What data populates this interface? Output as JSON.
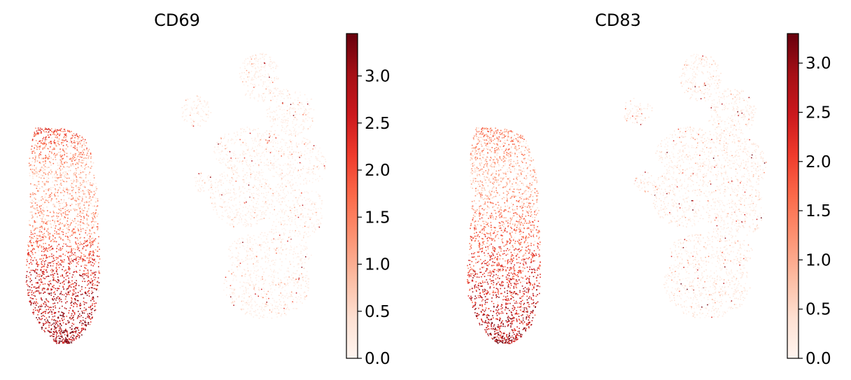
{
  "chart_data": [
    {
      "type": "scatter",
      "title": "CD69",
      "xlabel": "",
      "ylabel": "",
      "colormap": "Reds",
      "colorbar": {
        "min": 0.0,
        "max": 3.45,
        "ticks": [
          0.0,
          0.5,
          1.0,
          1.5,
          2.0,
          2.5,
          3.0
        ],
        "tick_labels": [
          "0.0",
          "0.5",
          "1.0",
          "1.5",
          "2.0",
          "2.5",
          "3.0"
        ]
      },
      "axes_visible": false,
      "clusters": [
        {
          "group": "left-elongated",
          "expression_by_height": [
            {
              "level": "top-lobe",
              "mean": 2.0
            },
            {
              "level": "upper-middle",
              "mean": 0.7
            },
            {
              "level": "middle",
              "mean": 1.3
            },
            {
              "level": "lower",
              "mean": 2.5
            },
            {
              "level": "bottom",
              "mean": 3.0
            }
          ]
        },
        {
          "group": "right-large",
          "mean": 0.2,
          "sparse_high_points": true
        }
      ]
    },
    {
      "type": "scatter",
      "title": "CD83",
      "xlabel": "",
      "ylabel": "",
      "colormap": "Reds",
      "colorbar": {
        "min": 0.0,
        "max": 3.3,
        "ticks": [
          0.0,
          0.5,
          1.0,
          1.5,
          2.0,
          2.5,
          3.0
        ],
        "tick_labels": [
          "0.0",
          "0.5",
          "1.0",
          "1.5",
          "2.0",
          "2.5",
          "3.0"
        ]
      },
      "axes_visible": false,
      "clusters": [
        {
          "group": "left-elongated",
          "expression_by_height": [
            {
              "level": "top-lobe",
              "mean": 1.3
            },
            {
              "level": "upper-middle",
              "mean": 0.6
            },
            {
              "level": "middle",
              "mean": 1.4
            },
            {
              "level": "lower",
              "mean": 2.2
            },
            {
              "level": "bottom",
              "mean": 2.8
            }
          ]
        },
        {
          "group": "right-large",
          "mean": 0.25,
          "sparse_high_points": true
        }
      ]
    }
  ]
}
